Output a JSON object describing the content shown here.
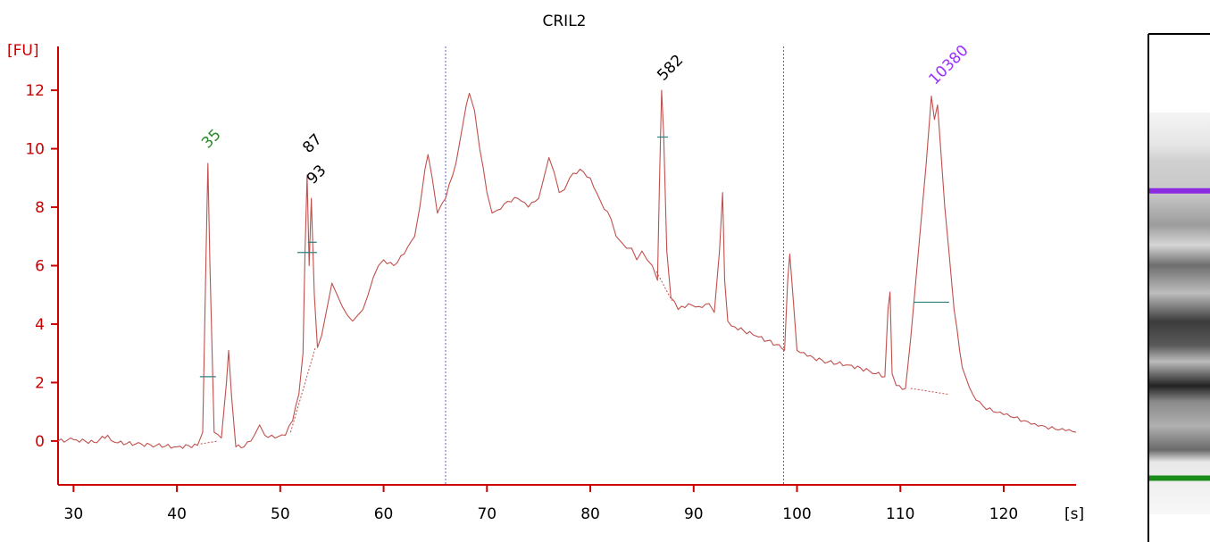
{
  "chart_data": {
    "type": "line",
    "title": "CRIL2",
    "ylabel": "[FU]",
    "xlabel": "[s]",
    "xlim": [
      28.5,
      127
    ],
    "ylim": [
      -1.5,
      13.5
    ],
    "x_ticks": [
      30,
      40,
      50,
      60,
      70,
      80,
      90,
      100,
      110,
      120
    ],
    "y_ticks": [
      0,
      2,
      4,
      6,
      8,
      10,
      12
    ],
    "grid": false,
    "series": [
      {
        "color": "#c0504d",
        "points": [
          [
            28.5,
            0.0
          ],
          [
            30,
            0.05
          ],
          [
            32,
            -0.05
          ],
          [
            33.3,
            0.2
          ],
          [
            34,
            -0.05
          ],
          [
            36,
            -0.1
          ],
          [
            38,
            -0.15
          ],
          [
            40,
            -0.2
          ],
          [
            42,
            -0.15
          ],
          [
            42.5,
            0.3
          ],
          [
            42.8,
            6.0
          ],
          [
            43.0,
            9.5
          ],
          [
            43.2,
            6.0
          ],
          [
            43.6,
            0.3
          ],
          [
            44.3,
            0.1
          ],
          [
            44.8,
            2.0
          ],
          [
            45.0,
            3.1
          ],
          [
            45.3,
            1.5
          ],
          [
            45.7,
            -0.2
          ],
          [
            46.5,
            -0.2
          ],
          [
            47.5,
            0.2
          ],
          [
            48.0,
            0.55
          ],
          [
            48.5,
            0.2
          ],
          [
            49.5,
            0.1
          ],
          [
            50.5,
            0.2
          ],
          [
            51.2,
            0.7
          ],
          [
            51.8,
            1.6
          ],
          [
            52.2,
            3.0
          ],
          [
            52.4,
            6.5
          ],
          [
            52.6,
            9.1
          ],
          [
            52.8,
            6.0
          ],
          [
            53.0,
            8.3
          ],
          [
            53.3,
            5.0
          ],
          [
            53.6,
            3.2
          ],
          [
            54.0,
            3.6
          ],
          [
            54.5,
            4.5
          ],
          [
            55.0,
            5.4
          ],
          [
            55.5,
            5.0
          ],
          [
            56.0,
            4.6
          ],
          [
            56.5,
            4.3
          ],
          [
            57.0,
            4.1
          ],
          [
            57.5,
            4.3
          ],
          [
            58.0,
            4.5
          ],
          [
            58.5,
            5.0
          ],
          [
            59.0,
            5.6
          ],
          [
            59.5,
            6.0
          ],
          [
            60.0,
            6.2
          ],
          [
            61.0,
            6.0
          ],
          [
            62.0,
            6.4
          ],
          [
            63.0,
            7.0
          ],
          [
            63.5,
            8.0
          ],
          [
            64.0,
            9.3
          ],
          [
            64.3,
            9.8
          ],
          [
            64.7,
            9.0
          ],
          [
            65.2,
            7.8
          ],
          [
            66.0,
            8.3
          ],
          [
            67.0,
            9.5
          ],
          [
            67.5,
            10.5
          ],
          [
            68.0,
            11.5
          ],
          [
            68.3,
            11.9
          ],
          [
            68.8,
            11.3
          ],
          [
            69.3,
            10.0
          ],
          [
            70.0,
            8.5
          ],
          [
            70.5,
            7.8
          ],
          [
            71.0,
            7.9
          ],
          [
            72.0,
            8.2
          ],
          [
            73.0,
            8.3
          ],
          [
            74.0,
            8.0
          ],
          [
            75.0,
            8.3
          ],
          [
            75.5,
            9.0
          ],
          [
            76.0,
            9.7
          ],
          [
            76.5,
            9.2
          ],
          [
            77.0,
            8.5
          ],
          [
            77.5,
            8.6
          ],
          [
            78.0,
            9.0
          ],
          [
            79.0,
            9.3
          ],
          [
            80.0,
            9.0
          ],
          [
            81.0,
            8.2
          ],
          [
            82.0,
            7.6
          ],
          [
            82.5,
            7.0
          ],
          [
            83.0,
            6.8
          ],
          [
            83.5,
            6.6
          ],
          [
            84.0,
            6.6
          ],
          [
            84.5,
            6.2
          ],
          [
            85.0,
            6.5
          ],
          [
            85.5,
            6.2
          ],
          [
            86.0,
            6.0
          ],
          [
            86.5,
            5.5
          ],
          [
            86.7,
            9.0
          ],
          [
            86.9,
            12.0
          ],
          [
            87.1,
            10.5
          ],
          [
            87.4,
            6.5
          ],
          [
            87.8,
            4.9
          ],
          [
            88.5,
            4.5
          ],
          [
            89.5,
            4.7
          ],
          [
            90.5,
            4.6
          ],
          [
            91.5,
            4.7
          ],
          [
            92.0,
            4.4
          ],
          [
            92.5,
            6.5
          ],
          [
            92.8,
            8.5
          ],
          [
            93.0,
            5.5
          ],
          [
            93.3,
            4.1
          ],
          [
            94.0,
            3.9
          ],
          [
            96.0,
            3.6
          ],
          [
            98.0,
            3.3
          ],
          [
            98.8,
            3.1
          ],
          [
            99.1,
            5.5
          ],
          [
            99.3,
            6.4
          ],
          [
            99.6,
            5.0
          ],
          [
            100.0,
            3.1
          ],
          [
            101.0,
            2.9
          ],
          [
            103.0,
            2.7
          ],
          [
            105.0,
            2.6
          ],
          [
            107.0,
            2.4
          ],
          [
            108.5,
            2.2
          ],
          [
            108.8,
            4.5
          ],
          [
            109.0,
            5.1
          ],
          [
            109.2,
            2.3
          ],
          [
            109.6,
            1.9
          ],
          [
            110.5,
            1.8
          ],
          [
            111.0,
            3.5
          ],
          [
            111.5,
            5.5
          ],
          [
            112.0,
            7.5
          ],
          [
            112.5,
            9.5
          ],
          [
            113.0,
            11.8
          ],
          [
            113.3,
            11.0
          ],
          [
            113.6,
            11.5
          ],
          [
            113.9,
            10.0
          ],
          [
            114.3,
            8.0
          ],
          [
            114.7,
            6.5
          ],
          [
            115.2,
            4.5
          ],
          [
            116.0,
            2.5
          ],
          [
            117.0,
            1.6
          ],
          [
            118.0,
            1.2
          ],
          [
            119.0,
            1.0
          ],
          [
            120.0,
            0.9
          ],
          [
            121.0,
            0.8
          ],
          [
            122.0,
            0.7
          ],
          [
            123.0,
            0.6
          ],
          [
            124.0,
            0.5
          ],
          [
            125.0,
            0.4
          ],
          [
            126.0,
            0.35
          ],
          [
            127.0,
            0.3
          ]
        ]
      }
    ],
    "peak_labels": [
      {
        "label": "35",
        "x": 43.0,
        "y": 9.5,
        "color": "#2a8a2a"
      },
      {
        "label": "87",
        "x": 52.6,
        "y": 9.4,
        "color": "#000000"
      },
      {
        "label": "93",
        "x": 53.0,
        "y": 8.4,
        "color": "#000000"
      },
      {
        "label": "582",
        "x": 86.9,
        "y": 12.0,
        "color": "#000000"
      },
      {
        "label": "10380",
        "x": 113.0,
        "y": 11.8,
        "color": "#9b30ff"
      }
    ],
    "marker_lines_x": [
      66.0,
      98.7
    ]
  },
  "gel": {
    "bands": [
      {
        "position": 0.195,
        "color": "#8a2be2"
      },
      {
        "position": 0.91,
        "color": "#1a8c1a"
      }
    ]
  }
}
